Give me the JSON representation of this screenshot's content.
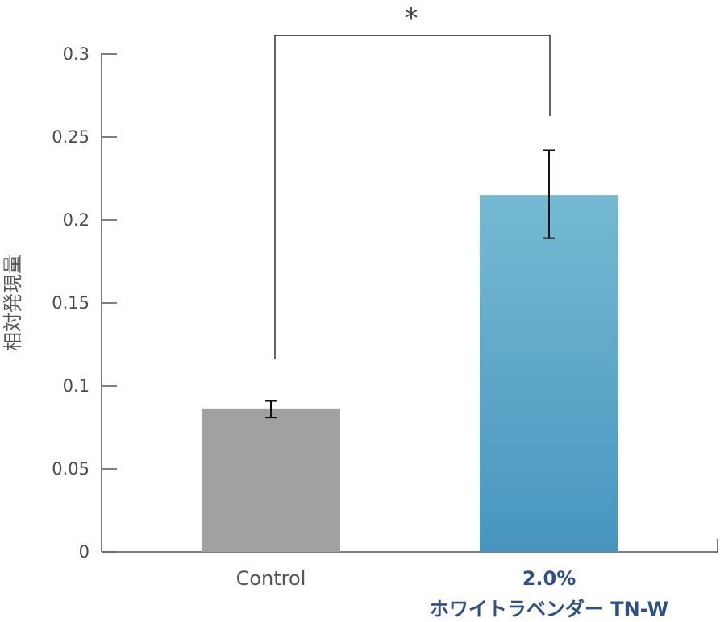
{
  "chart_data": {
    "type": "bar",
    "title": "",
    "ylabel": "相対発現量",
    "xlabel": "",
    "ylim": [
      0,
      0.3
    ],
    "yticks": [
      0,
      0.05,
      0.1,
      0.15,
      0.2,
      0.25,
      0.3
    ],
    "ytick_labels": [
      "0",
      "0.05",
      "0.1",
      "0.15",
      "0.2",
      "0.25",
      "0.3"
    ],
    "grid": false,
    "categories": [
      {
        "lines": [
          "Control"
        ],
        "accent": false
      },
      {
        "lines": [
          "2.0%",
          "ホワイトラベンダー TN-W"
        ],
        "accent": true
      }
    ],
    "values": [
      0.086,
      0.215
    ],
    "error_low": [
      0.081,
      0.189
    ],
    "error_high": [
      0.091,
      0.242
    ],
    "colors": [
      "#a0a1a0",
      "#4a98c0"
    ],
    "significance": {
      "from": 0,
      "to": 1,
      "label": "*"
    }
  }
}
